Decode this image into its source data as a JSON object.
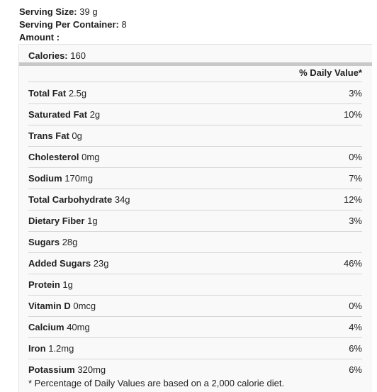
{
  "serving_size": {
    "label": "Serving Size:",
    "value": "39 g"
  },
  "servings_per_container": {
    "label": "Serving Per Container:",
    "value": "8"
  },
  "amount_label": "Amount :",
  "calories": {
    "label": "Calories:",
    "value": "160"
  },
  "daily_value_header": "% Daily Value*",
  "nutrients": [
    {
      "name": "Total Fat",
      "amount": "2.5g",
      "dv": "3%"
    },
    {
      "name": "Saturated Fat",
      "amount": "2g",
      "dv": "10%"
    },
    {
      "name": "Trans Fat",
      "amount": "0g",
      "dv": ""
    },
    {
      "name": "Cholesterol",
      "amount": "0mg",
      "dv": "0%"
    },
    {
      "name": "Sodium",
      "amount": "170mg",
      "dv": "7%"
    },
    {
      "name": "Total Carbohydrate",
      "amount": "34g",
      "dv": "12%"
    },
    {
      "name": "Dietary Fiber",
      "amount": "1g",
      "dv": "3%"
    },
    {
      "name": "Sugars",
      "amount": "28g",
      "dv": ""
    },
    {
      "name": "Added Sugars",
      "amount": "23g",
      "dv": "46%"
    },
    {
      "name": "Protein",
      "amount": "1g",
      "dv": ""
    },
    {
      "name": "Vitamin D",
      "amount": "0mcg",
      "dv": "0%"
    },
    {
      "name": "Calcium",
      "amount": "40mg",
      "dv": "4%"
    },
    {
      "name": "Iron",
      "amount": "1.2mg",
      "dv": "6%"
    },
    {
      "name": "Potassium",
      "amount": "320mg",
      "dv": "6%"
    }
  ],
  "footnote": "* Percentage of Daily Values are based on a 2,000 calorie diet."
}
